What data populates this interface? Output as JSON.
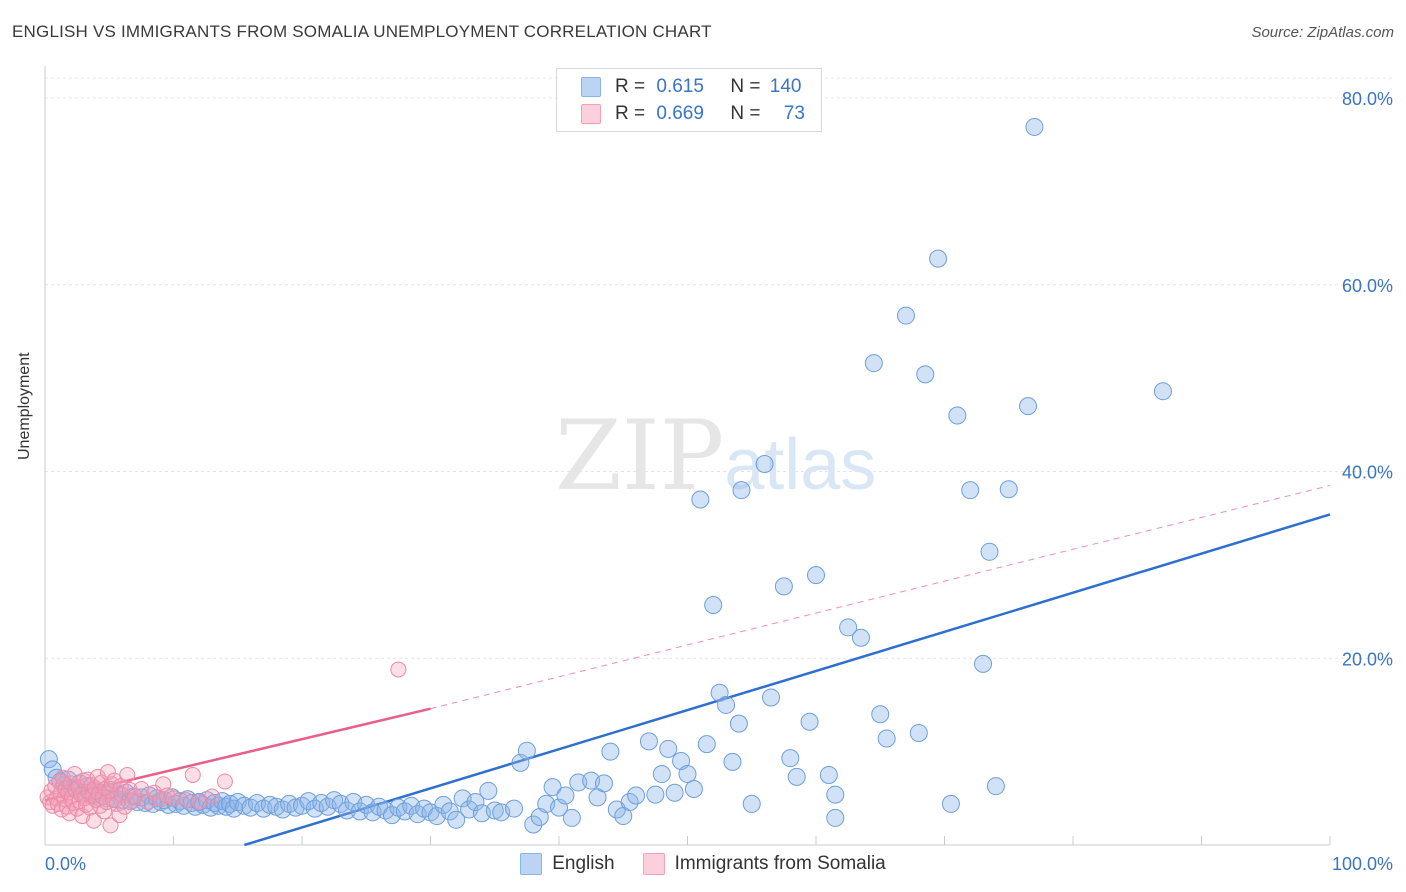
{
  "title": "ENGLISH VS IMMIGRANTS FROM SOMALIA UNEMPLOYMENT CORRELATION CHART",
  "source": "Source: ZipAtlas.com",
  "watermark": {
    "zip": "ZIP",
    "atlas": "atlas"
  },
  "legend": {
    "english": {
      "r_label": "R = ",
      "r_value": "0.615",
      "n_label": "N = ",
      "n_value": "140"
    },
    "somalia": {
      "r_label": "R = ",
      "r_value": "0.669",
      "n_label": "N = ",
      "n_value": "73"
    }
  },
  "colors": {
    "english": "#8ab4e8",
    "english_line": "#2f6fcf",
    "somalia": "#f4a0b8",
    "somalia_line": "#e8608a",
    "tick_text": "#3a74c4",
    "grid": "#e4e4e4"
  },
  "chart_data": {
    "type": "scatter",
    "xlabel": "",
    "ylabel": "Unemployment",
    "xlim": [
      0,
      100
    ],
    "ylim": [
      0,
      80
    ],
    "x_ticks_labels": [
      "0.0%",
      "100.0%"
    ],
    "y_ticks": [
      20,
      40,
      60,
      80
    ],
    "y_tick_labels": [
      "20.0%",
      "40.0%",
      "60.0%",
      "80.0%"
    ],
    "grid": true,
    "legend_position": "bottom",
    "series": [
      {
        "name": "English",
        "color": "#8ab4e8",
        "trend": {
          "x": [
            0,
            100
          ],
          "y": [
            -6.5,
            35.4
          ],
          "style": "solid"
        },
        "points": [
          [
            0.3,
            9.2
          ],
          [
            0.6,
            8.1
          ],
          [
            0.9,
            7.2
          ],
          [
            1.2,
            6.8
          ],
          [
            1.5,
            6.4
          ],
          [
            1.8,
            7.0
          ],
          [
            2.1,
            6.1
          ],
          [
            2.4,
            5.9
          ],
          [
            2.7,
            6.6
          ],
          [
            3.0,
            5.6
          ],
          [
            3.3,
            6.3
          ],
          [
            3.6,
            5.3
          ],
          [
            3.9,
            5.8
          ],
          [
            4.2,
            5.1
          ],
          [
            4.5,
            5.6
          ],
          [
            4.8,
            5.0
          ],
          [
            5.1,
            5.9
          ],
          [
            5.4,
            4.9
          ],
          [
            5.7,
            5.4
          ],
          [
            6.0,
            4.8
          ],
          [
            6.3,
            5.6
          ],
          [
            6.6,
            4.7
          ],
          [
            6.9,
            5.2
          ],
          [
            7.2,
            4.6
          ],
          [
            7.5,
            5.1
          ],
          [
            7.8,
            4.5
          ],
          [
            8.1,
            5.3
          ],
          [
            8.4,
            4.4
          ],
          [
            8.7,
            5.0
          ],
          [
            9.0,
            4.6
          ],
          [
            9.3,
            4.8
          ],
          [
            9.6,
            4.3
          ],
          [
            9.9,
            5.1
          ],
          [
            10.2,
            4.4
          ],
          [
            10.5,
            4.7
          ],
          [
            10.8,
            4.2
          ],
          [
            11.1,
            4.9
          ],
          [
            11.4,
            4.5
          ],
          [
            11.7,
            4.1
          ],
          [
            12.0,
            4.6
          ],
          [
            12.3,
            4.3
          ],
          [
            12.6,
            4.8
          ],
          [
            12.9,
            4.0
          ],
          [
            13.2,
            4.5
          ],
          [
            13.5,
            4.2
          ],
          [
            13.8,
            4.7
          ],
          [
            14.1,
            4.1
          ],
          [
            14.4,
            4.4
          ],
          [
            14.7,
            3.9
          ],
          [
            15.0,
            4.6
          ],
          [
            15.5,
            4.2
          ],
          [
            16.0,
            4.0
          ],
          [
            16.5,
            4.5
          ],
          [
            17.0,
            3.9
          ],
          [
            17.5,
            4.3
          ],
          [
            18.0,
            4.1
          ],
          [
            18.5,
            3.8
          ],
          [
            19.0,
            4.4
          ],
          [
            19.5,
            4.0
          ],
          [
            20.0,
            4.2
          ],
          [
            20.5,
            4.7
          ],
          [
            21.0,
            3.9
          ],
          [
            21.5,
            4.5
          ],
          [
            22.0,
            4.1
          ],
          [
            22.5,
            4.8
          ],
          [
            23.0,
            4.4
          ],
          [
            23.5,
            3.7
          ],
          [
            24.0,
            4.6
          ],
          [
            24.5,
            3.6
          ],
          [
            25.0,
            4.3
          ],
          [
            25.5,
            3.5
          ],
          [
            26.0,
            4.1
          ],
          [
            26.5,
            3.7
          ],
          [
            27.0,
            3.2
          ],
          [
            27.5,
            4.0
          ],
          [
            28.0,
            3.6
          ],
          [
            28.5,
            4.2
          ],
          [
            29.0,
            3.3
          ],
          [
            29.5,
            3.9
          ],
          [
            30.0,
            3.5
          ],
          [
            30.5,
            3.1
          ],
          [
            31.0,
            4.3
          ],
          [
            31.5,
            3.6
          ],
          [
            32.0,
            2.7
          ],
          [
            32.5,
            5.0
          ],
          [
            33.0,
            3.8
          ],
          [
            33.5,
            4.6
          ],
          [
            34.0,
            3.4
          ],
          [
            34.5,
            5.8
          ],
          [
            35.0,
            3.7
          ],
          [
            35.5,
            3.5
          ],
          [
            36.5,
            3.9
          ],
          [
            37.0,
            8.8
          ],
          [
            37.5,
            10.1
          ],
          [
            38.0,
            2.2
          ],
          [
            38.5,
            3.0
          ],
          [
            39.0,
            4.4
          ],
          [
            39.5,
            6.2
          ],
          [
            40.0,
            4.0
          ],
          [
            40.5,
            5.3
          ],
          [
            41.0,
            2.9
          ],
          [
            41.5,
            6.7
          ],
          [
            42.5,
            6.9
          ],
          [
            43.0,
            5.1
          ],
          [
            43.5,
            6.6
          ],
          [
            44.0,
            10.0
          ],
          [
            44.5,
            3.8
          ],
          [
            45.0,
            3.1
          ],
          [
            45.5,
            4.6
          ],
          [
            46.0,
            5.3
          ],
          [
            47.0,
            11.1
          ],
          [
            47.5,
            5.4
          ],
          [
            48.0,
            7.6
          ],
          [
            48.5,
            10.3
          ],
          [
            49.0,
            5.6
          ],
          [
            49.5,
            9.0
          ],
          [
            50.0,
            7.6
          ],
          [
            50.5,
            6.0
          ],
          [
            51.0,
            37.0
          ],
          [
            51.5,
            10.8
          ],
          [
            52.0,
            25.7
          ],
          [
            52.5,
            16.3
          ],
          [
            53.0,
            15.0
          ],
          [
            53.5,
            8.9
          ],
          [
            54.0,
            13.0
          ],
          [
            54.2,
            38.0
          ],
          [
            55.0,
            4.4
          ],
          [
            56.0,
            40.8
          ],
          [
            56.5,
            15.8
          ],
          [
            57.5,
            27.7
          ],
          [
            58.0,
            9.3
          ],
          [
            58.5,
            7.3
          ],
          [
            59.5,
            13.2
          ],
          [
            60.0,
            28.9
          ],
          [
            61.0,
            7.5
          ],
          [
            61.5,
            2.9
          ],
          [
            61.5,
            5.4
          ],
          [
            62.5,
            23.3
          ],
          [
            63.5,
            22.2
          ],
          [
            64.5,
            51.6
          ],
          [
            65.0,
            14.0
          ],
          [
            65.5,
            11.4
          ],
          [
            67.0,
            56.7
          ],
          [
            68.0,
            12.0
          ],
          [
            68.5,
            50.4
          ],
          [
            69.5,
            62.8
          ],
          [
            70.5,
            4.4
          ],
          [
            71.0,
            46.0
          ],
          [
            72.0,
            38.0
          ],
          [
            73.0,
            19.4
          ],
          [
            73.5,
            31.4
          ],
          [
            74.0,
            6.3
          ],
          [
            75.0,
            38.1
          ],
          [
            76.5,
            47.0
          ],
          [
            77.0,
            76.9
          ],
          [
            87.0,
            48.6
          ]
        ]
      },
      {
        "name": "Immigrants from Somalia",
        "color": "#f4a0b8",
        "trend_solid": {
          "x": [
            0,
            30
          ],
          "y": [
            4.8,
            14.6
          ],
          "style": "solid"
        },
        "trend_dashed": {
          "x": [
            30,
            100
          ],
          "y": [
            14.6,
            38.5
          ],
          "style": "dashed"
        },
        "points": [
          [
            0.2,
            5.1
          ],
          [
            0.4,
            4.6
          ],
          [
            0.5,
            5.8
          ],
          [
            0.6,
            4.2
          ],
          [
            0.8,
            6.3
          ],
          [
            0.9,
            5.0
          ],
          [
            1.0,
            4.4
          ],
          [
            1.1,
            6.8
          ],
          [
            1.2,
            5.5
          ],
          [
            1.3,
            3.8
          ],
          [
            1.4,
            7.2
          ],
          [
            1.5,
            4.9
          ],
          [
            1.6,
            6.0
          ],
          [
            1.7,
            4.1
          ],
          [
            1.8,
            5.6
          ],
          [
            1.9,
            3.4
          ],
          [
            2.0,
            6.6
          ],
          [
            2.1,
            5.2
          ],
          [
            2.2,
            4.5
          ],
          [
            2.3,
            7.6
          ],
          [
            2.4,
            5.9
          ],
          [
            2.5,
            3.9
          ],
          [
            2.6,
            6.2
          ],
          [
            2.7,
            4.7
          ],
          [
            2.8,
            5.4
          ],
          [
            2.9,
            3.1
          ],
          [
            3.0,
            6.9
          ],
          [
            3.1,
            5.0
          ],
          [
            3.2,
            4.3
          ],
          [
            3.3,
            7.0
          ],
          [
            3.4,
            5.7
          ],
          [
            3.5,
            4.0
          ],
          [
            3.6,
            6.4
          ],
          [
            3.7,
            5.3
          ],
          [
            3.8,
            2.6
          ],
          [
            3.9,
            6.1
          ],
          [
            4.0,
            4.8
          ],
          [
            4.1,
            7.3
          ],
          [
            4.2,
            5.5
          ],
          [
            4.3,
            4.2
          ],
          [
            4.4,
            6.7
          ],
          [
            4.5,
            5.1
          ],
          [
            4.6,
            3.6
          ],
          [
            4.7,
            6.0
          ],
          [
            4.8,
            4.6
          ],
          [
            4.9,
            7.8
          ],
          [
            5.0,
            5.8
          ],
          [
            5.1,
            2.1
          ],
          [
            5.2,
            6.5
          ],
          [
            5.3,
            4.9
          ],
          [
            5.4,
            6.9
          ],
          [
            5.6,
            4.4
          ],
          [
            5.8,
            3.2
          ],
          [
            5.9,
            6.3
          ],
          [
            6.0,
            5.4
          ],
          [
            6.2,
            4.1
          ],
          [
            6.4,
            7.5
          ],
          [
            6.6,
            5.9
          ],
          [
            6.8,
            4.7
          ],
          [
            7.0,
            5.2
          ],
          [
            7.5,
            6.0
          ],
          [
            8.0,
            4.6
          ],
          [
            8.5,
            5.6
          ],
          [
            9.0,
            4.9
          ],
          [
            9.2,
            6.5
          ],
          [
            9.5,
            5.3
          ],
          [
            10.0,
            5.0
          ],
          [
            11.0,
            4.8
          ],
          [
            11.5,
            7.5
          ],
          [
            12.0,
            4.6
          ],
          [
            13.0,
            5.2
          ],
          [
            14.0,
            6.8
          ],
          [
            27.5,
            18.8
          ]
        ]
      }
    ]
  }
}
